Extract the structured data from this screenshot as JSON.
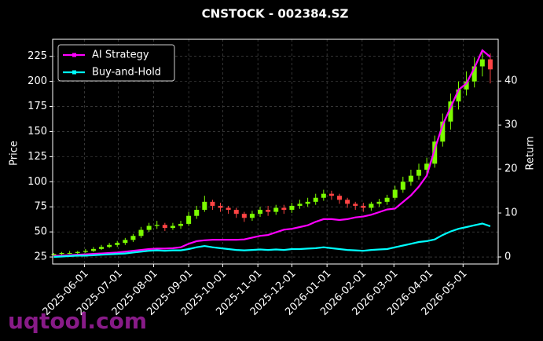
{
  "chart_data": {
    "type": "candlestick",
    "title": "CNSTOCK - 002384.SZ",
    "ylabel": "Price",
    "y2label": "Return",
    "watermark": "uqtool.com",
    "x": [
      "2025-05-05",
      "2025-05-12",
      "2025-05-19",
      "2025-05-26",
      "2025-06-02",
      "2025-06-09",
      "2025-06-16",
      "2025-06-23",
      "2025-06-30",
      "2025-07-07",
      "2025-07-14",
      "2025-07-21",
      "2025-07-28",
      "2025-08-04",
      "2025-08-11",
      "2025-08-18",
      "2025-08-25",
      "2025-09-01",
      "2025-09-08",
      "2025-09-15",
      "2025-09-22",
      "2025-09-29",
      "2025-10-06",
      "2025-10-13",
      "2025-10-20",
      "2025-10-27",
      "2025-11-03",
      "2025-11-10",
      "2025-11-17",
      "2025-11-24",
      "2025-12-01",
      "2025-12-08",
      "2025-12-15",
      "2025-12-22",
      "2025-12-29",
      "2026-01-05",
      "2026-01-12",
      "2026-01-19",
      "2026-01-26",
      "2026-02-02",
      "2026-02-09",
      "2026-02-16",
      "2026-02-23",
      "2026-03-02",
      "2026-03-09",
      "2026-03-16",
      "2026-03-23",
      "2026-03-30",
      "2026-04-06",
      "2026-04-13",
      "2026-04-20",
      "2026-04-27",
      "2026-05-04",
      "2026-05-11",
      "2026-05-18",
      "2026-05-25"
    ],
    "open": [
      27,
      28,
      29,
      29,
      30,
      31,
      33,
      35,
      37,
      39,
      42,
      46,
      52,
      56,
      57,
      54,
      56,
      58,
      66,
      72,
      80,
      76,
      74,
      72,
      68,
      64,
      68,
      72,
      70,
      74,
      72,
      76,
      78,
      80,
      84,
      88,
      86,
      82,
      78,
      76,
      74,
      78,
      80,
      84,
      92,
      100,
      106,
      112,
      118,
      140,
      160,
      180,
      192,
      200,
      215,
      222
    ],
    "high": [
      29,
      30,
      31,
      31,
      33,
      35,
      37,
      39,
      41,
      44,
      48,
      55,
      59,
      61,
      59,
      59,
      61,
      70,
      76,
      86,
      82,
      79,
      76,
      74,
      70,
      71,
      75,
      76,
      77,
      77,
      79,
      82,
      84,
      88,
      92,
      91,
      88,
      84,
      80,
      79,
      80,
      83,
      87,
      96,
      105,
      112,
      118,
      124,
      146,
      168,
      188,
      200,
      210,
      224,
      230,
      228
    ],
    "low": [
      26,
      27,
      28,
      28,
      29,
      30,
      32,
      34,
      35,
      37,
      40,
      44,
      50,
      53,
      51,
      52,
      53,
      56,
      63,
      70,
      72,
      70,
      68,
      64,
      60,
      61,
      65,
      66,
      67,
      68,
      69,
      73,
      75,
      77,
      81,
      82,
      78,
      74,
      72,
      70,
      71,
      75,
      77,
      82,
      89,
      96,
      102,
      106,
      114,
      135,
      152,
      172,
      186,
      194,
      205,
      198
    ],
    "close": [
      28,
      29,
      29,
      30,
      31,
      33,
      35,
      37,
      39,
      42,
      46,
      52,
      56,
      57,
      54,
      56,
      58,
      66,
      72,
      80,
      76,
      74,
      72,
      68,
      64,
      68,
      72,
      70,
      74,
      72,
      76,
      78,
      80,
      84,
      88,
      86,
      82,
      78,
      76,
      74,
      78,
      80,
      84,
      92,
      100,
      106,
      112,
      118,
      140,
      160,
      180,
      192,
      200,
      215,
      222,
      212
    ],
    "up_color": "#7CFC00",
    "down_color": "#ff4444",
    "series": [
      {
        "name": "AI Strategy",
        "color": "#ff00ff",
        "axis": "y2",
        "values": [
          0.2,
          0.3,
          0.4,
          0.5,
          0.6,
          0.7,
          0.8,
          0.9,
          1.0,
          1.2,
          1.4,
          1.6,
          1.8,
          1.9,
          1.9,
          2.0,
          2.2,
          3.0,
          3.6,
          3.8,
          3.9,
          3.9,
          3.9,
          3.9,
          4.0,
          4.4,
          4.8,
          5.0,
          5.6,
          6.2,
          6.4,
          6.8,
          7.2,
          8.0,
          8.6,
          8.6,
          8.4,
          8.6,
          9.0,
          9.2,
          9.6,
          10.2,
          10.8,
          11.0,
          12.5,
          14.0,
          16.0,
          18.5,
          24.5,
          30.0,
          34.0,
          38.0,
          39.5,
          43.0,
          47.0,
          45.5
        ]
      },
      {
        "name": "Buy-and-Hold",
        "color": "#00ffff",
        "axis": "y2",
        "values": [
          0.0,
          0.1,
          0.2,
          0.3,
          0.3,
          0.4,
          0.5,
          0.6,
          0.7,
          0.8,
          1.0,
          1.2,
          1.4,
          1.5,
          1.4,
          1.5,
          1.5,
          1.8,
          2.2,
          2.5,
          2.2,
          2.0,
          1.8,
          1.6,
          1.5,
          1.6,
          1.7,
          1.6,
          1.7,
          1.6,
          1.8,
          1.8,
          1.9,
          2.0,
          2.2,
          2.0,
          1.8,
          1.6,
          1.5,
          1.4,
          1.6,
          1.7,
          1.8,
          2.2,
          2.6,
          3.0,
          3.4,
          3.6,
          4.0,
          5.0,
          5.8,
          6.4,
          6.8,
          7.2,
          7.6,
          7.0
        ]
      }
    ],
    "xlim": [
      "2025-05-04",
      "2026-06-01"
    ],
    "xticks": [
      "2025-06-01",
      "2025-07-01",
      "2025-08-01",
      "2025-09-01",
      "2025-10-01",
      "2025-11-01",
      "2025-12-01",
      "2026-01-01",
      "2026-02-01",
      "2026-03-01",
      "2026-04-01",
      "2026-05-01"
    ],
    "ylim": [
      18,
      242
    ],
    "yticks": [
      25,
      50,
      75,
      100,
      125,
      150,
      175,
      200,
      225
    ],
    "y2lim": [
      -1.6,
      49.5
    ],
    "y2ticks": [
      0,
      10,
      20,
      30,
      40
    ],
    "grid": true,
    "legend": "upper-left"
  }
}
